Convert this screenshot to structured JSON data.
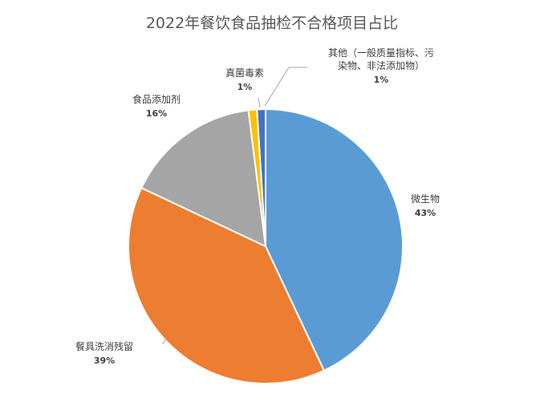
{
  "chart_data": {
    "type": "pie",
    "title": "2022年餐饮食品抽检不合格项目占比",
    "legend": "none",
    "slices": [
      {
        "name": "微生物",
        "name_lines": [
          "微生物"
        ],
        "value": 43,
        "pct_label": "43%",
        "color": "#5b9bd5"
      },
      {
        "name": "餐具洗消残留",
        "name_lines": [
          "餐具洗消残留"
        ],
        "value": 39,
        "pct_label": "39%",
        "color": "#ed7d31"
      },
      {
        "name": "食品添加剂",
        "name_lines": [
          "食品添加剂"
        ],
        "value": 16,
        "pct_label": "16%",
        "color": "#a5a5a5"
      },
      {
        "name": "真菌毒素",
        "name_lines": [
          "真菌毒素"
        ],
        "value": 1,
        "pct_label": "1%",
        "color": "#ffc000"
      },
      {
        "name": "其他（一般质量指标、污染物、非法添加物）",
        "name_lines": [
          "其他（一般质量指标、污",
          "染物、非法添加物）"
        ],
        "value": 1,
        "pct_label": "1%",
        "color": "#4472c4"
      }
    ]
  }
}
